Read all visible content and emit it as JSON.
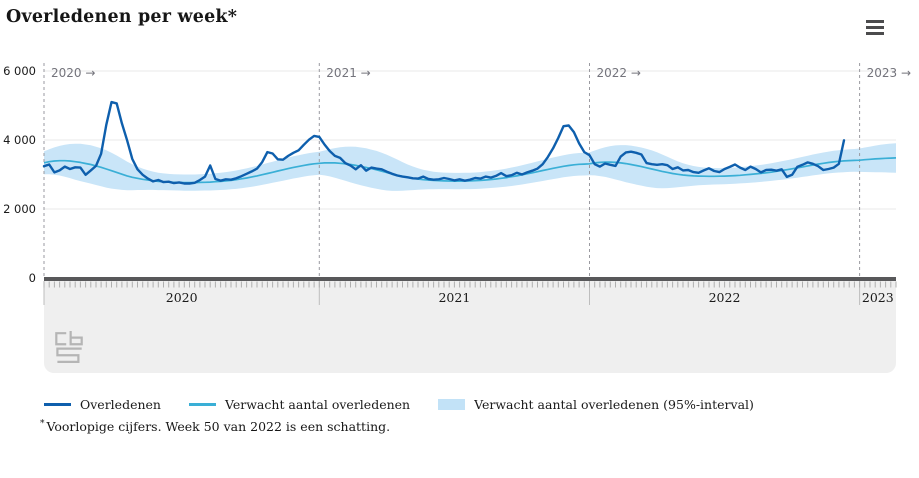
{
  "header": {
    "title": "Overledenen per week*"
  },
  "menu": {
    "icon": "hamburger-menu-icon"
  },
  "chart_data": {
    "type": "line",
    "title": "Overledenen per week*",
    "x_unit": "week",
    "grid": "horizontal",
    "legend_position": "bottom",
    "ylim": [
      0,
      6200
    ],
    "y_ticks": [
      {
        "label": "6 000",
        "value": 6000
      },
      {
        "label": "4 000",
        "value": 4000
      },
      {
        "label": "2 000",
        "value": 2000
      },
      {
        "label": "0",
        "value": 0
      }
    ],
    "years": [
      {
        "label": "2020",
        "weeks": 53
      },
      {
        "label": "2021",
        "weeks": 52
      },
      {
        "label": "2022",
        "weeks": 52
      },
      {
        "label": "2023",
        "weeks": 8
      }
    ],
    "year_marker_arrow": "→",
    "colors": {
      "observed": "#0e5fad",
      "expected": "#3aafd6",
      "interval": "#c9e5f8",
      "grid": "#e9e9e9",
      "axis": "#58585a",
      "tick": "#afafaf",
      "stub": "#bdbdbd",
      "dashed": "#9a9aa0",
      "annotation": "#74747c",
      "text": "#1a1a1a"
    },
    "series": [
      {
        "name": "Overledenen",
        "color": "#0e5fad",
        "values": [
          3240,
          3290,
          3060,
          3120,
          3230,
          3160,
          3210,
          3200,
          2990,
          3120,
          3250,
          3600,
          4440,
          5100,
          5060,
          4480,
          3990,
          3450,
          3150,
          2990,
          2880,
          2800,
          2840,
          2780,
          2790,
          2750,
          2770,
          2740,
          2740,
          2760,
          2840,
          2940,
          3260,
          2870,
          2820,
          2860,
          2850,
          2890,
          2950,
          3020,
          3090,
          3170,
          3360,
          3650,
          3610,
          3440,
          3430,
          3540,
          3630,
          3700,
          3860,
          4010,
          4120,
          4090,
          3870,
          3680,
          3540,
          3480,
          3330,
          3260,
          3150,
          3270,
          3110,
          3200,
          3170,
          3150,
          3080,
          3020,
          2970,
          2940,
          2920,
          2890,
          2880,
          2940,
          2870,
          2850,
          2860,
          2900,
          2870,
          2830,
          2860,
          2820,
          2850,
          2900,
          2880,
          2940,
          2910,
          2960,
          3040,
          2950,
          2980,
          3050,
          3000,
          3060,
          3110,
          3170,
          3300,
          3510,
          3760,
          4060,
          4400,
          4420,
          4230,
          3900,
          3650,
          3560,
          3300,
          3230,
          3320,
          3280,
          3250,
          3520,
          3640,
          3660,
          3630,
          3580,
          3330,
          3300,
          3280,
          3300,
          3270,
          3160,
          3210,
          3120,
          3130,
          3070,
          3050,
          3120,
          3180,
          3100,
          3070,
          3160,
          3220,
          3290,
          3200,
          3130,
          3230,
          3160,
          3060,
          3130,
          3140,
          3110,
          3150,
          2930,
          2990,
          3220,
          3280,
          3350,
          3310,
          3240,
          3130,
          3160,
          3200,
          3310,
          3990
        ]
      },
      {
        "name": "Verwacht aantal overledenen",
        "color": "#3aafd6",
        "values": [
          3340,
          3370,
          3390,
          3400,
          3400,
          3390,
          3370,
          3350,
          3320,
          3290,
          3250,
          3210,
          3160,
          3110,
          3060,
          3010,
          2960,
          2920,
          2890,
          2860,
          2840,
          2820,
          2800,
          2790,
          2780,
          2775,
          2770,
          2765,
          2765,
          2765,
          2770,
          2775,
          2780,
          2790,
          2800,
          2815,
          2830,
          2850,
          2875,
          2900,
          2930,
          2960,
          2995,
          3030,
          3065,
          3100,
          3135,
          3170,
          3205,
          3235,
          3265,
          3290,
          3310,
          3325,
          3335,
          3340,
          3335,
          3325,
          3310,
          3290,
          3265,
          3235,
          3205,
          3170,
          3135,
          3095,
          3055,
          3015,
          2980,
          2945,
          2915,
          2890,
          2870,
          2850,
          2840,
          2828,
          2820,
          2815,
          2812,
          2810,
          2810,
          2812,
          2815,
          2820,
          2830,
          2842,
          2855,
          2870,
          2890,
          2910,
          2935,
          2960,
          2990,
          3020,
          3050,
          3082,
          3115,
          3148,
          3180,
          3210,
          3238,
          3262,
          3282,
          3295,
          3302,
          3310,
          3335,
          3350,
          3360,
          3360,
          3350,
          3335,
          3315,
          3290,
          3260,
          3230,
          3195,
          3160,
          3125,
          3090,
          3060,
          3030,
          3005,
          2985,
          2970,
          2960,
          2955,
          2950,
          2948,
          2948,
          2950,
          2955,
          2960,
          2968,
          2978,
          2990,
          3002,
          3016,
          3032,
          3050,
          3070,
          3092,
          3115,
          3140,
          3165,
          3192,
          3220,
          3248,
          3276,
          3302,
          3326,
          3348,
          3366,
          3382,
          3394,
          3402,
          3408,
          3415,
          3428,
          3440,
          3452,
          3462,
          3470,
          3476,
          3480
        ]
      },
      {
        "name": "Verwacht aantal overledenen (95%-interval)",
        "color": "#c9e5f8",
        "upper": [
          3670,
          3730,
          3785,
          3830,
          3865,
          3885,
          3890,
          3890,
          3870,
          3845,
          3805,
          3760,
          3700,
          3630,
          3550,
          3465,
          3375,
          3295,
          3230,
          3170,
          3125,
          3085,
          3052,
          3033,
          3018,
          3010,
          3004,
          2999,
          3000,
          3001,
          3008,
          3015,
          3023,
          3036,
          3050,
          3070,
          3090,
          3116,
          3147,
          3178,
          3214,
          3250,
          3291,
          3332,
          3372,
          3411,
          3450,
          3489,
          3527,
          3560,
          3592,
          3619,
          3640,
          3657,
          3697,
          3736,
          3765,
          3789,
          3804,
          3808,
          3803,
          3783,
          3758,
          3723,
          3683,
          3633,
          3573,
          3504,
          3434,
          3360,
          3291,
          3231,
          3181,
          3136,
          3106,
          3081,
          3064,
          3054,
          3048,
          3045,
          3045,
          3048,
          3052,
          3059,
          3071,
          3086,
          3102,
          3121,
          3146,
          3171,
          3202,
          3233,
          3269,
          3305,
          3341,
          3379,
          3418,
          3456,
          3492,
          3526,
          3558,
          3585,
          3608,
          3623,
          3632,
          3642,
          3697,
          3746,
          3790,
          3824,
          3844,
          3853,
          3853,
          3838,
          3813,
          3783,
          3743,
          3698,
          3643,
          3579,
          3514,
          3445,
          3381,
          3326,
          3281,
          3246,
          3221,
          3203,
          3192,
          3187,
          3186,
          3190,
          3195,
          3204,
          3215,
          3229,
          3243,
          3260,
          3279,
          3301,
          3326,
          3353,
          3382,
          3413,
          3444,
          3477,
          3511,
          3545,
          3579,
          3610,
          3638,
          3664,
          3686,
          3705,
          3720,
          3730,
          3738,
          3755,
          3783,
          3810,
          3837,
          3860,
          3880,
          3896,
          3908
        ],
        "lower": [
          3010,
          3010,
          2995,
          2970,
          2935,
          2895,
          2850,
          2810,
          2770,
          2735,
          2695,
          2660,
          2620,
          2590,
          2570,
          2555,
          2545,
          2545,
          2550,
          2550,
          2555,
          2555,
          2548,
          2547,
          2542,
          2540,
          2536,
          2531,
          2530,
          2529,
          2532,
          2535,
          2537,
          2544,
          2550,
          2560,
          2570,
          2584,
          2603,
          2622,
          2646,
          2670,
          2699,
          2728,
          2758,
          2789,
          2820,
          2851,
          2883,
          2910,
          2938,
          2961,
          2980,
          2993,
          2973,
          2944,
          2905,
          2861,
          2816,
          2772,
          2727,
          2687,
          2652,
          2617,
          2587,
          2557,
          2537,
          2526,
          2526,
          2530,
          2539,
          2549,
          2559,
          2564,
          2574,
          2575,
          2576,
          2576,
          2576,
          2575,
          2575,
          2576,
          2578,
          2581,
          2589,
          2598,
          2608,
          2619,
          2634,
          2649,
          2668,
          2687,
          2711,
          2735,
          2759,
          2785,
          2812,
          2840,
          2868,
          2894,
          2918,
          2939,
          2956,
          2967,
          2972,
          2978,
          2973,
          2954,
          2930,
          2896,
          2856,
          2817,
          2777,
          2742,
          2707,
          2677,
          2647,
          2622,
          2607,
          2601,
          2606,
          2615,
          2629,
          2644,
          2659,
          2674,
          2689,
          2697,
          2704,
          2709,
          2714,
          2720,
          2725,
          2732,
          2741,
          2751,
          2761,
          2772,
          2785,
          2799,
          2814,
          2831,
          2848,
          2867,
          2886,
          2907,
          2929,
          2951,
          2973,
          2994,
          3014,
          3032,
          3046,
          3059,
          3068,
          3074,
          3078,
          3075,
          3073,
          3070,
          3067,
          3064,
          3060,
          3056,
          3052
        ]
      }
    ]
  },
  "legend": {
    "items": [
      {
        "label": "Overledenen",
        "swatch": "line",
        "color": "#0e5fad"
      },
      {
        "label": "Verwacht aantal overledenen",
        "swatch": "line",
        "color": "#3aafd6"
      },
      {
        "label": "Verwacht aantal overledenen (95%-interval)",
        "swatch": "rect",
        "color": "#c2e2f7"
      }
    ]
  },
  "footnote": {
    "marker": "*",
    "text": "Voorlopige cijfers. Week 50 van 2022 is een schatting."
  },
  "logo": {
    "name": "cbs-logo"
  }
}
